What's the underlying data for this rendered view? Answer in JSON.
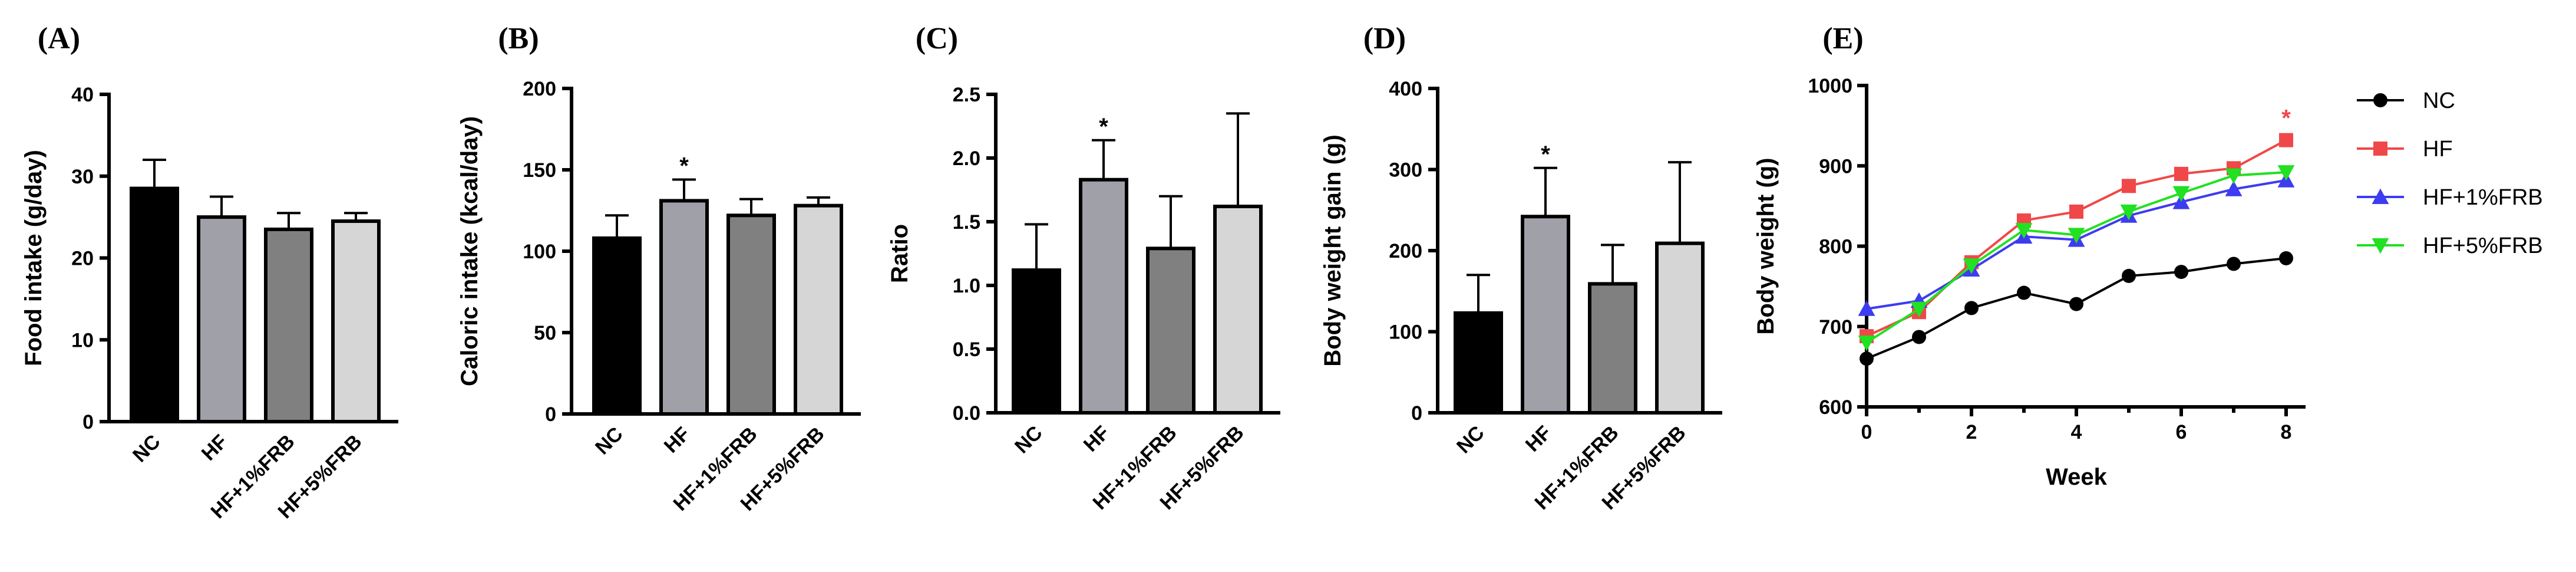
{
  "chart_data": [
    {
      "type": "bar",
      "panel": "(A)",
      "ylabel": "Food intake (g/day)",
      "ylim": [
        0,
        40
      ],
      "yticks": [
        0,
        10,
        20,
        30,
        40
      ],
      "categories": [
        "NC",
        "HF",
        "HF+1%FRB",
        "HF+5%FRB"
      ],
      "values": [
        28.5,
        25.0,
        23.5,
        24.5
      ],
      "errors": [
        3.5,
        2.5,
        2.0,
        1.0
      ],
      "colors": [
        "#000000",
        "#a0a0a8",
        "#808080",
        "#d6d6d6"
      ],
      "significance": [
        "",
        "",
        "",
        ""
      ]
    },
    {
      "type": "bar",
      "panel": "(B)",
      "ylabel": "Caloric intake (kcal/day)",
      "ylim": [
        0,
        200
      ],
      "yticks": [
        0,
        50,
        100,
        150,
        200
      ],
      "categories": [
        "NC",
        "HF",
        "HF+1%FRB",
        "HF+5%FRB"
      ],
      "values": [
        108,
        131,
        122,
        128
      ],
      "errors": [
        14,
        13,
        10,
        5
      ],
      "colors": [
        "#000000",
        "#a0a0a8",
        "#808080",
        "#d6d6d6"
      ],
      "significance": [
        "",
        "*",
        "",
        ""
      ]
    },
    {
      "type": "bar",
      "panel": "(C)",
      "ylabel": "Ratio",
      "ylim": [
        0,
        2.5
      ],
      "yticks": [
        "0.0",
        "0.5",
        "1.0",
        "1.5",
        "2.0",
        "2.5"
      ],
      "categories": [
        "NC",
        "HF",
        "HF+1%FRB",
        "HF+5%FRB"
      ],
      "values": [
        1.12,
        1.83,
        1.29,
        1.62
      ],
      "errors": [
        0.36,
        0.31,
        0.41,
        0.73
      ],
      "colors": [
        "#000000",
        "#a0a0a8",
        "#808080",
        "#d6d6d6"
      ],
      "significance": [
        "",
        "*",
        "",
        ""
      ]
    },
    {
      "type": "bar",
      "panel": "(D)",
      "ylabel": "Body weight gain (g)",
      "ylim": [
        0,
        400
      ],
      "yticks": [
        0,
        100,
        200,
        300,
        400
      ],
      "categories": [
        "NC",
        "HF",
        "HF+1%FRB",
        "HF+5%FRB"
      ],
      "values": [
        123,
        242,
        159,
        209
      ],
      "errors": [
        47,
        60,
        48,
        100
      ],
      "colors": [
        "#000000",
        "#a0a0a8",
        "#808080",
        "#d6d6d6"
      ],
      "significance": [
        "",
        "*",
        "",
        ""
      ]
    },
    {
      "type": "line",
      "panel": "(E)",
      "xlabel": "Week",
      "ylabel": "Body weight (g)",
      "xlim": [
        0,
        8
      ],
      "ylim": [
        600,
        1000
      ],
      "xticks": [
        0,
        2,
        4,
        6,
        8
      ],
      "yticks": [
        600,
        700,
        800,
        900,
        1000
      ],
      "x": [
        0,
        1,
        2,
        3,
        4,
        5,
        6,
        7,
        8
      ],
      "series": [
        {
          "name": "NC",
          "color": "#000000",
          "marker": "circle",
          "values": [
            660,
            687,
            723,
            742,
            728,
            763,
            768,
            778,
            785
          ]
        },
        {
          "name": "HF",
          "color": "#f04848",
          "marker": "square",
          "values": [
            688,
            718,
            780,
            832,
            843,
            875,
            890,
            897,
            932
          ]
        },
        {
          "name": "HF+1%FRB",
          "color": "#3c3cf0",
          "marker": "triangle-up",
          "values": [
            722,
            732,
            771,
            812,
            808,
            838,
            855,
            871,
            882
          ]
        },
        {
          "name": "HF+5%FRB",
          "color": "#22e022",
          "marker": "triangle-down",
          "values": [
            680,
            722,
            776,
            820,
            814,
            843,
            866,
            888,
            892
          ]
        }
      ],
      "significance": [
        {
          "series": "HF",
          "x": 8,
          "label": "*",
          "color": "#f04848"
        }
      ]
    }
  ]
}
